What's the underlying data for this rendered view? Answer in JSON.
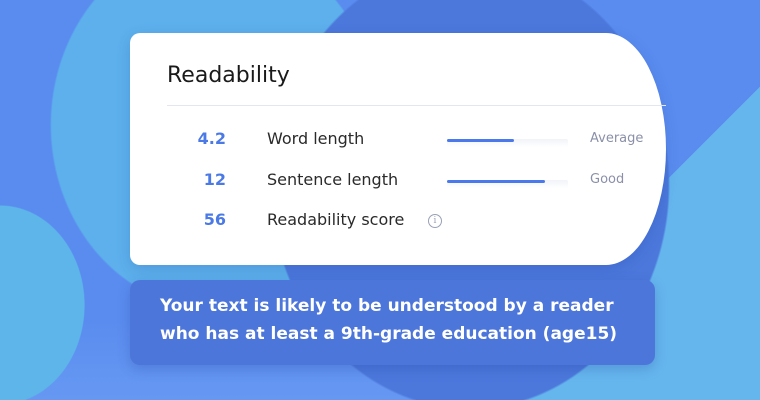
{
  "card": {
    "title": "Readability",
    "metrics": [
      {
        "value": "4.2",
        "label": "Word length",
        "level": 0.55,
        "rating": "Average"
      },
      {
        "value": "12",
        "label": "Sentence length",
        "level": 0.81,
        "rating": "Good"
      },
      {
        "value": "56",
        "label": "Readability score",
        "info_icon": "info-icon",
        "info_glyph": "i"
      }
    ]
  },
  "caption": {
    "line1": "Your text is likely to be understood by a reader",
    "line2": "who has at least a 9th-grade education (age15)"
  },
  "colors": {
    "accent": "#4b7ae6",
    "caption_bg": "#4d76da",
    "background": "#5a8cef"
  }
}
